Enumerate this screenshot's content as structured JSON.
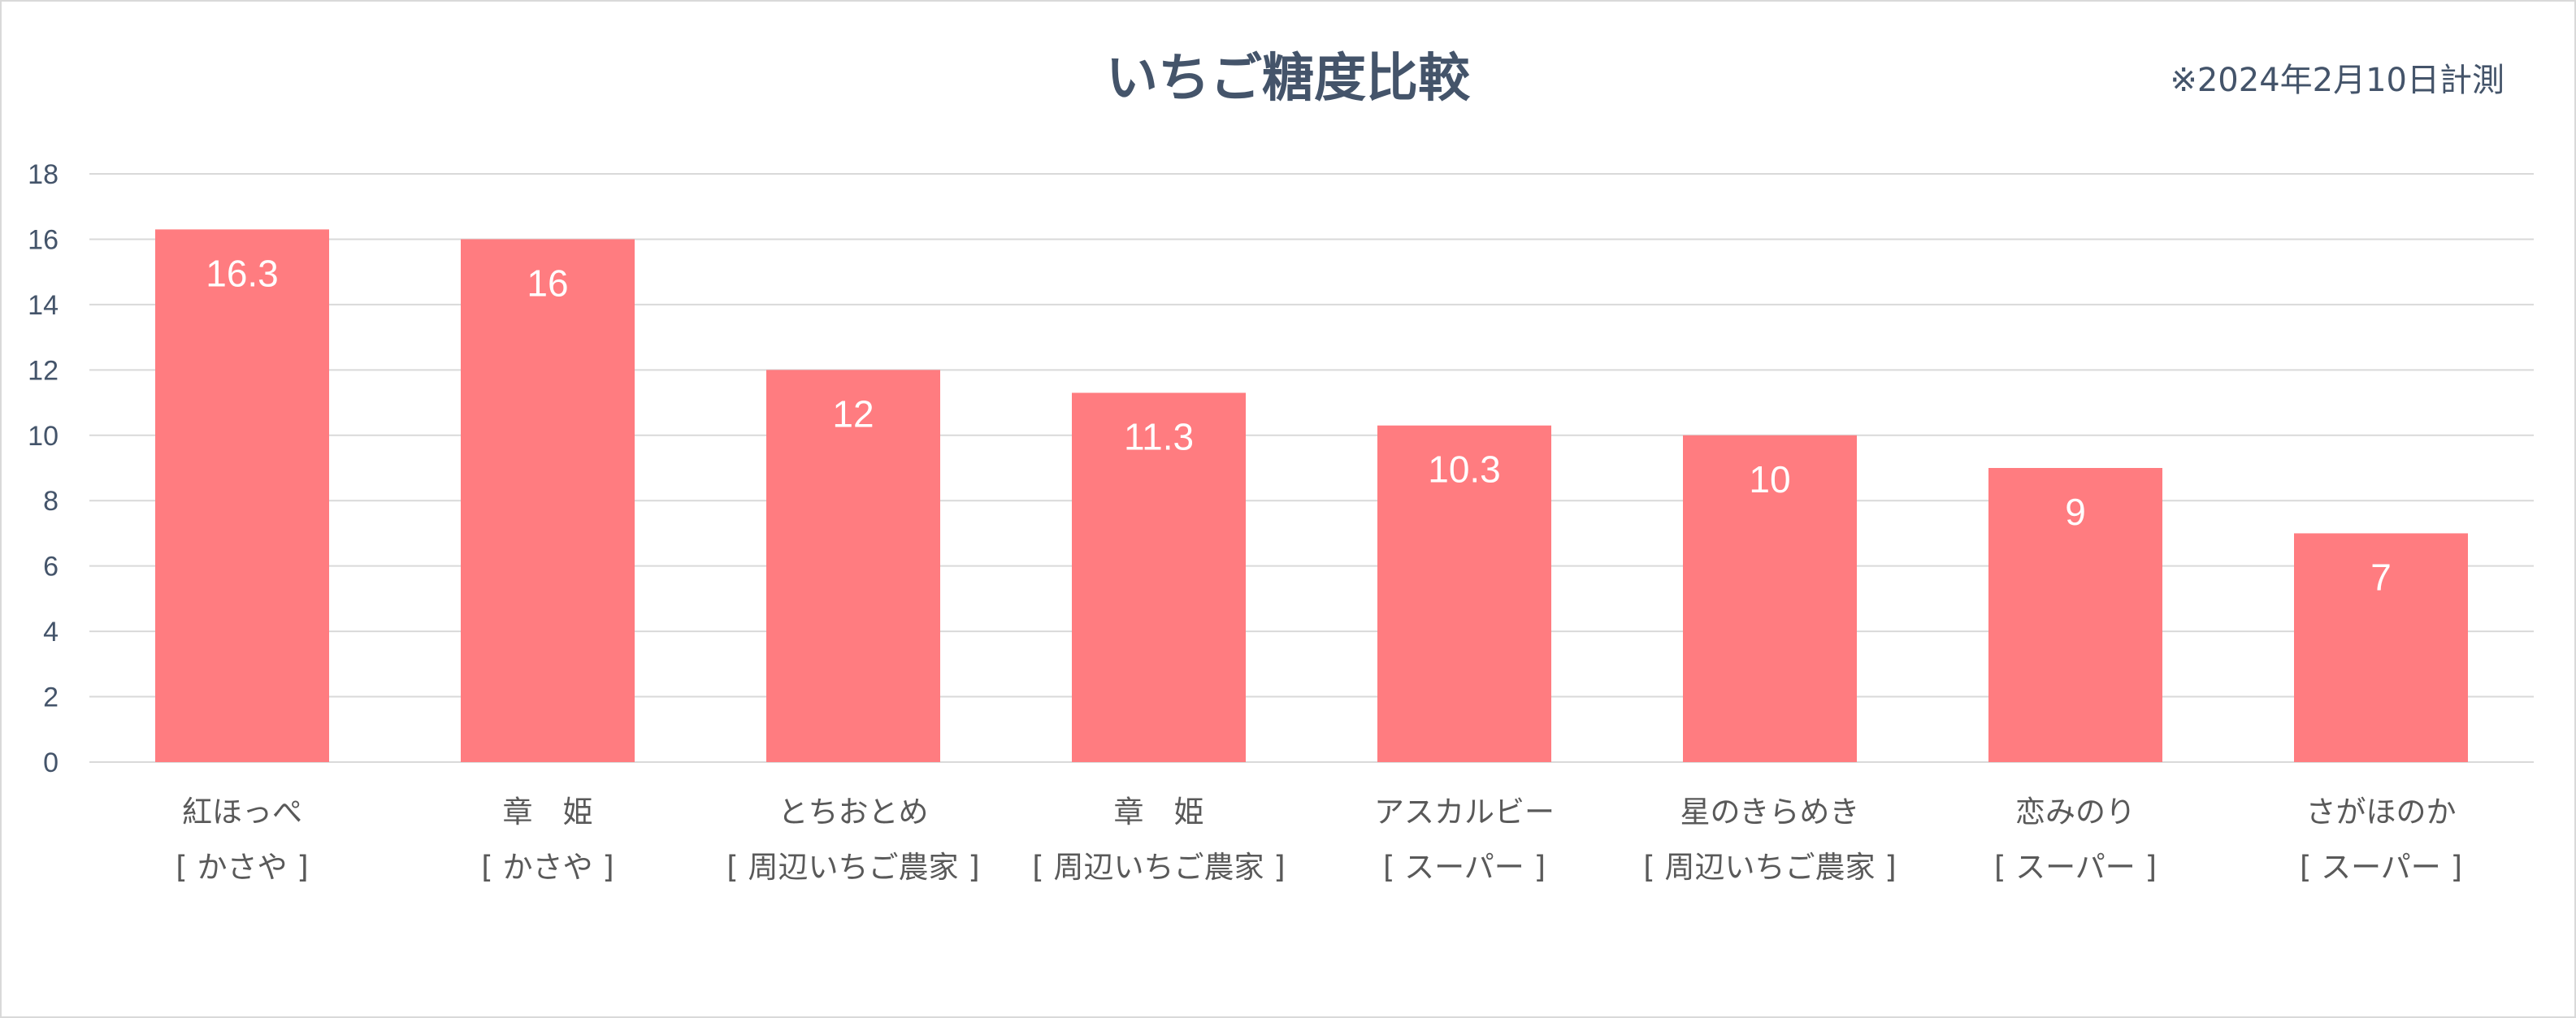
{
  "chart_data": {
    "type": "bar",
    "title": "いちご糖度比較",
    "note": "※2024年2月10日計測",
    "categories": [
      {
        "name": "紅ほっぺ",
        "source": "[ かさや ]"
      },
      {
        "name": "章　姫",
        "source": "[ かさや ]"
      },
      {
        "name": "とちおとめ",
        "source": "[ 周辺いちご農家 ]"
      },
      {
        "name": "章　姫",
        "source": "[ 周辺いちご農家 ]"
      },
      {
        "name": "アスカルビー",
        "source": "[ スーパー ]"
      },
      {
        "name": "星のきらめき",
        "source": "[ 周辺いちご農家 ]"
      },
      {
        "name": "恋みのり",
        "source": "[ スーパー ]"
      },
      {
        "name": "さがほのか",
        "source": "[ スーパー ]"
      }
    ],
    "values": [
      16.3,
      16,
      12,
      11.3,
      10.3,
      10,
      9,
      7
    ],
    "data_labels": [
      "16.3",
      "16",
      "12",
      "11.3",
      "10.3",
      "10",
      "9",
      "7"
    ],
    "ylim": [
      0,
      18
    ],
    "yticks": [
      0,
      2,
      4,
      6,
      8,
      10,
      12,
      14,
      16,
      18
    ],
    "grid": true,
    "legend": "none",
    "colors": {
      "bar": "#ff7c80",
      "grid": "#d9d9d9",
      "text": "#44546a"
    }
  }
}
